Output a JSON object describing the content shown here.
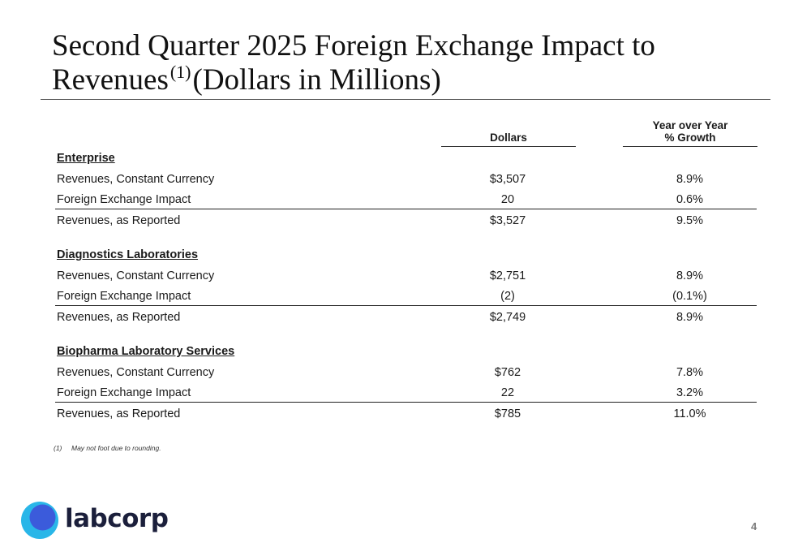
{
  "title": {
    "line1": "Second Quarter 2025 Foreign Exchange Impact to",
    "line2_a": "Revenues",
    "superscript": "(1)",
    "line2_b": "(Dollars in Millions)"
  },
  "columns": {
    "dollars": "Dollars",
    "growth_line1": "Year over Year",
    "growth_line2": "% Growth"
  },
  "sections": [
    {
      "header": "Enterprise",
      "rows": [
        {
          "label": "Revenues, Constant Currency",
          "dollars": "$3,507",
          "growth": "8.9%"
        },
        {
          "label": "Foreign Exchange Impact",
          "dollars": "20",
          "growth": "0.6%"
        },
        {
          "label": "Revenues, as Reported",
          "dollars": "$3,527",
          "growth": "9.5%"
        }
      ]
    },
    {
      "header": "Diagnostics Laboratories",
      "rows": [
        {
          "label": "Revenues, Constant Currency",
          "dollars": "$2,751",
          "growth": "8.9%"
        },
        {
          "label": "Foreign Exchange Impact",
          "dollars": "(2)",
          "growth": "(0.1%)"
        },
        {
          "label": "Revenues, as Reported",
          "dollars": "$2,749",
          "growth": "8.9%"
        }
      ]
    },
    {
      "header": "Biopharma Laboratory Services",
      "rows": [
        {
          "label": "Revenues, Constant Currency",
          "dollars": "$762",
          "growth": "7.8%"
        },
        {
          "label": "Foreign Exchange Impact",
          "dollars": "22",
          "growth": "3.2%"
        },
        {
          "label": "Revenues, as Reported",
          "dollars": "$785",
          "growth": "11.0%"
        }
      ]
    }
  ],
  "footnote": {
    "number": "(1)",
    "text": "May not foot due to rounding."
  },
  "logo": {
    "text": "labcorp",
    "colors": {
      "outer": "#29b6e8",
      "inner": "#3b5bdb",
      "text": "#1b1f3b"
    }
  },
  "page_number": "4"
}
